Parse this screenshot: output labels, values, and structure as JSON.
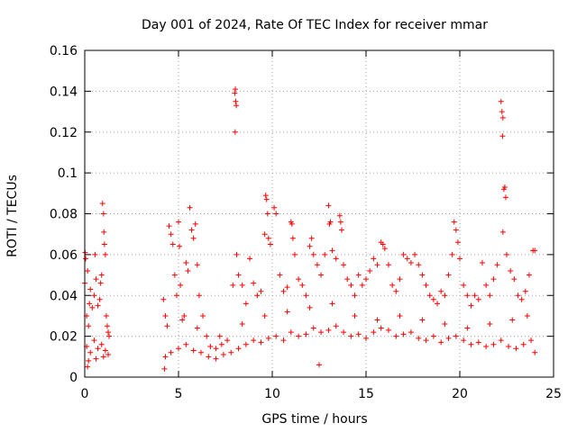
{
  "chart_data": {
    "type": "scatter",
    "title": "Day 001 of 2024, Rate Of TEC Index for receiver mmar",
    "xlabel": "GPS time / hours",
    "ylabel": "ROTI / TECUs",
    "xlim": [
      0,
      25
    ],
    "ylim": [
      0,
      0.16
    ],
    "grid": true,
    "marker": "+",
    "color": "#ff0000",
    "xticks": [
      0,
      5,
      10,
      15,
      20,
      25
    ],
    "xtick_labels": [
      "0",
      "5",
      "10",
      "15",
      "20",
      "25"
    ],
    "yticks": [
      0,
      0.02,
      0.04,
      0.06,
      0.08,
      0.1,
      0.12,
      0.14,
      0.16
    ],
    "ytick_labels": [
      "0",
      "0.02",
      "0.04",
      "0.06",
      "0.08",
      "0.1",
      "0.12",
      "0.14",
      "0.16"
    ],
    "series": [
      {
        "name": "ROTI",
        "points": [
          [
            0.0,
            0.046
          ],
          [
            0.02,
            0.061
          ],
          [
            0.05,
            0.058
          ],
          [
            0.1,
            0.03
          ],
          [
            0.15,
            0.052
          ],
          [
            0.2,
            0.025
          ],
          [
            0.25,
            0.036
          ],
          [
            0.3,
            0.043
          ],
          [
            0.4,
            0.034
          ],
          [
            0.5,
            0.04
          ],
          [
            0.55,
            0.06
          ],
          [
            0.6,
            0.048
          ],
          [
            0.7,
            0.035
          ],
          [
            0.8,
            0.038
          ],
          [
            0.85,
            0.046
          ],
          [
            0.9,
            0.05
          ],
          [
            0.95,
            0.085
          ],
          [
            1.0,
            0.08
          ],
          [
            1.02,
            0.071
          ],
          [
            1.05,
            0.065
          ],
          [
            1.1,
            0.06
          ],
          [
            1.15,
            0.03
          ],
          [
            1.2,
            0.025
          ],
          [
            1.25,
            0.022
          ],
          [
            1.3,
            0.02
          ],
          [
            0.1,
            0.015
          ],
          [
            0.3,
            0.012
          ],
          [
            0.5,
            0.018
          ],
          [
            0.7,
            0.014
          ],
          [
            0.9,
            0.016
          ],
          [
            1.1,
            0.013
          ],
          [
            1.25,
            0.011
          ],
          [
            0.2,
            0.008
          ],
          [
            0.6,
            0.009
          ],
          [
            1.0,
            0.01
          ],
          [
            4.2,
            0.038
          ],
          [
            4.3,
            0.03
          ],
          [
            4.5,
            0.074
          ],
          [
            4.6,
            0.07
          ],
          [
            4.7,
            0.065
          ],
          [
            4.8,
            0.05
          ],
          [
            4.9,
            0.04
          ],
          [
            5.0,
            0.076
          ],
          [
            5.05,
            0.064
          ],
          [
            5.1,
            0.045
          ],
          [
            5.3,
            0.03
          ],
          [
            5.4,
            0.056
          ],
          [
            5.5,
            0.052
          ],
          [
            5.6,
            0.083
          ],
          [
            5.7,
            0.072
          ],
          [
            5.8,
            0.068
          ],
          [
            5.9,
            0.075
          ],
          [
            6.0,
            0.055
          ],
          [
            6.1,
            0.04
          ],
          [
            6.3,
            0.03
          ],
          [
            6.5,
            0.02
          ],
          [
            6.7,
            0.015
          ],
          [
            7.0,
            0.014
          ],
          [
            7.3,
            0.016
          ],
          [
            7.6,
            0.018
          ],
          [
            7.9,
            0.045
          ],
          [
            8.0,
            0.139
          ],
          [
            8.03,
            0.141
          ],
          [
            8.05,
            0.135
          ],
          [
            8.08,
            0.133
          ],
          [
            8.02,
            0.12
          ],
          [
            8.1,
            0.06
          ],
          [
            8.2,
            0.05
          ],
          [
            8.4,
            0.045
          ],
          [
            8.6,
            0.036
          ],
          [
            8.8,
            0.058
          ],
          [
            9.0,
            0.046
          ],
          [
            9.2,
            0.04
          ],
          [
            9.4,
            0.042
          ],
          [
            9.6,
            0.07
          ],
          [
            9.65,
            0.089
          ],
          [
            9.7,
            0.087
          ],
          [
            9.75,
            0.08
          ],
          [
            9.8,
            0.068
          ],
          [
            9.9,
            0.065
          ],
          [
            10.1,
            0.083
          ],
          [
            10.2,
            0.08
          ],
          [
            10.4,
            0.05
          ],
          [
            10.6,
            0.042
          ],
          [
            10.8,
            0.044
          ],
          [
            11.0,
            0.076
          ],
          [
            11.05,
            0.075
          ],
          [
            11.1,
            0.068
          ],
          [
            11.2,
            0.06
          ],
          [
            11.4,
            0.048
          ],
          [
            11.6,
            0.045
          ],
          [
            11.8,
            0.04
          ],
          [
            12.0,
            0.064
          ],
          [
            12.1,
            0.068
          ],
          [
            12.2,
            0.06
          ],
          [
            12.4,
            0.055
          ],
          [
            12.6,
            0.05
          ],
          [
            12.8,
            0.06
          ],
          [
            13.0,
            0.084
          ],
          [
            13.05,
            0.075
          ],
          [
            13.1,
            0.076
          ],
          [
            13.2,
            0.062
          ],
          [
            13.4,
            0.058
          ],
          [
            13.6,
            0.079
          ],
          [
            13.65,
            0.076
          ],
          [
            13.7,
            0.072
          ],
          [
            13.8,
            0.055
          ],
          [
            14.0,
            0.048
          ],
          [
            14.2,
            0.045
          ],
          [
            14.4,
            0.04
          ],
          [
            14.6,
            0.05
          ],
          [
            14.8,
            0.045
          ],
          [
            15.0,
            0.048
          ],
          [
            15.2,
            0.052
          ],
          [
            15.4,
            0.058
          ],
          [
            15.6,
            0.055
          ],
          [
            15.8,
            0.066
          ],
          [
            15.9,
            0.065
          ],
          [
            16.0,
            0.063
          ],
          [
            16.2,
            0.055
          ],
          [
            16.4,
            0.045
          ],
          [
            16.6,
            0.042
          ],
          [
            16.8,
            0.048
          ],
          [
            17.0,
            0.06
          ],
          [
            17.2,
            0.058
          ],
          [
            17.4,
            0.056
          ],
          [
            17.6,
            0.06
          ],
          [
            17.8,
            0.055
          ],
          [
            18.0,
            0.05
          ],
          [
            18.2,
            0.045
          ],
          [
            18.4,
            0.04
          ],
          [
            18.6,
            0.038
          ],
          [
            18.8,
            0.036
          ],
          [
            19.0,
            0.042
          ],
          [
            19.2,
            0.04
          ],
          [
            19.4,
            0.05
          ],
          [
            19.6,
            0.06
          ],
          [
            19.7,
            0.076
          ],
          [
            19.8,
            0.072
          ],
          [
            19.9,
            0.066
          ],
          [
            20.0,
            0.058
          ],
          [
            20.2,
            0.045
          ],
          [
            20.4,
            0.04
          ],
          [
            20.6,
            0.035
          ],
          [
            20.8,
            0.04
          ],
          [
            21.0,
            0.038
          ],
          [
            21.2,
            0.056
          ],
          [
            21.4,
            0.045
          ],
          [
            21.6,
            0.04
          ],
          [
            21.8,
            0.048
          ],
          [
            22.0,
            0.055
          ],
          [
            22.2,
            0.135
          ],
          [
            22.25,
            0.13
          ],
          [
            22.3,
            0.127
          ],
          [
            22.28,
            0.118
          ],
          [
            22.35,
            0.092
          ],
          [
            22.4,
            0.093
          ],
          [
            22.45,
            0.088
          ],
          [
            22.3,
            0.071
          ],
          [
            22.5,
            0.06
          ],
          [
            22.7,
            0.052
          ],
          [
            22.9,
            0.048
          ],
          [
            23.1,
            0.04
          ],
          [
            23.3,
            0.038
          ],
          [
            23.5,
            0.042
          ],
          [
            23.7,
            0.05
          ],
          [
            23.9,
            0.062
          ],
          [
            24.0,
            0.062
          ],
          [
            4.3,
            0.01
          ],
          [
            4.6,
            0.012
          ],
          [
            5.0,
            0.014
          ],
          [
            5.4,
            0.016
          ],
          [
            5.8,
            0.013
          ],
          [
            6.2,
            0.012
          ],
          [
            6.6,
            0.01
          ],
          [
            7.0,
            0.009
          ],
          [
            7.4,
            0.011
          ],
          [
            7.8,
            0.012
          ],
          [
            8.2,
            0.014
          ],
          [
            8.6,
            0.016
          ],
          [
            9.0,
            0.018
          ],
          [
            9.4,
            0.017
          ],
          [
            9.8,
            0.019
          ],
          [
            10.2,
            0.02
          ],
          [
            10.6,
            0.018
          ],
          [
            11.0,
            0.022
          ],
          [
            11.4,
            0.02
          ],
          [
            11.8,
            0.021
          ],
          [
            12.2,
            0.024
          ],
          [
            12.6,
            0.022
          ],
          [
            13.0,
            0.023
          ],
          [
            13.4,
            0.025
          ],
          [
            13.8,
            0.022
          ],
          [
            14.2,
            0.02
          ],
          [
            14.6,
            0.021
          ],
          [
            15.0,
            0.019
          ],
          [
            15.4,
            0.022
          ],
          [
            15.8,
            0.024
          ],
          [
            16.2,
            0.023
          ],
          [
            16.6,
            0.02
          ],
          [
            17.0,
            0.021
          ],
          [
            17.4,
            0.022
          ],
          [
            17.8,
            0.019
          ],
          [
            18.2,
            0.018
          ],
          [
            18.6,
            0.02
          ],
          [
            19.0,
            0.017
          ],
          [
            19.4,
            0.019
          ],
          [
            19.8,
            0.02
          ],
          [
            20.2,
            0.018
          ],
          [
            20.6,
            0.016
          ],
          [
            21.0,
            0.017
          ],
          [
            21.4,
            0.015
          ],
          [
            21.8,
            0.016
          ],
          [
            22.2,
            0.018
          ],
          [
            22.6,
            0.015
          ],
          [
            23.0,
            0.014
          ],
          [
            23.4,
            0.016
          ],
          [
            23.8,
            0.018
          ],
          [
            24.0,
            0.012
          ],
          [
            4.4,
            0.025
          ],
          [
            5.2,
            0.028
          ],
          [
            6.0,
            0.024
          ],
          [
            7.2,
            0.02
          ],
          [
            8.4,
            0.026
          ],
          [
            9.6,
            0.03
          ],
          [
            10.8,
            0.032
          ],
          [
            12.0,
            0.034
          ],
          [
            13.2,
            0.036
          ],
          [
            14.4,
            0.03
          ],
          [
            15.6,
            0.028
          ],
          [
            16.8,
            0.03
          ],
          [
            18.0,
            0.028
          ],
          [
            19.2,
            0.026
          ],
          [
            20.4,
            0.024
          ],
          [
            21.6,
            0.026
          ],
          [
            22.8,
            0.028
          ],
          [
            23.6,
            0.03
          ],
          [
            0.15,
            0.005
          ],
          [
            4.25,
            0.004
          ],
          [
            12.5,
            0.006
          ]
        ]
      }
    ]
  }
}
